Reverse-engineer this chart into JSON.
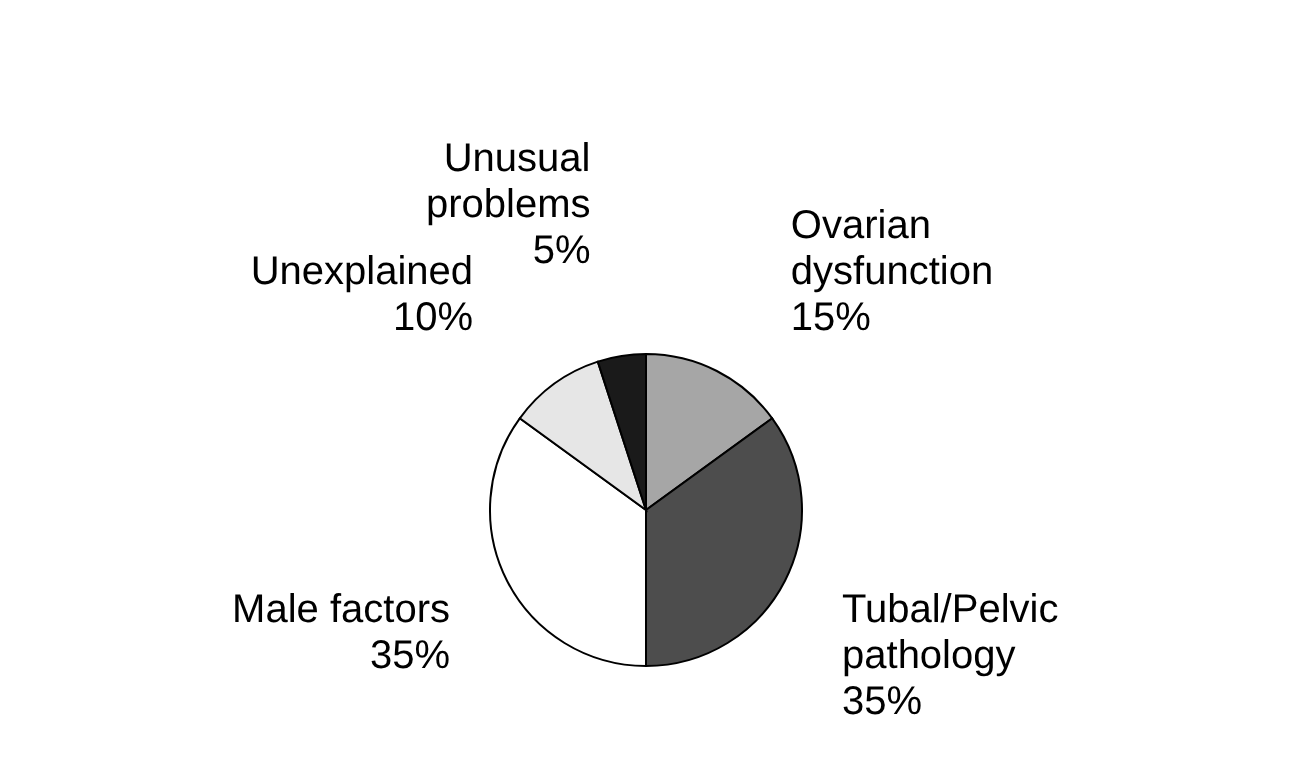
{
  "chart_data": {
    "type": "pie",
    "categories": [
      "Ovarian dysfunction",
      "Tubal/Pelvic pathology",
      "Male factors",
      "Unexplained",
      "Unusual problems"
    ],
    "values": [
      15,
      35,
      35,
      10,
      5
    ],
    "value_labels": [
      "15%",
      "35%",
      "35%",
      "10%",
      "5%"
    ],
    "colors": [
      "#a6a6a6",
      "#4d4d4d",
      "#ffffff",
      "#e6e6e6",
      "#1a1a1a"
    ],
    "legend": false
  }
}
